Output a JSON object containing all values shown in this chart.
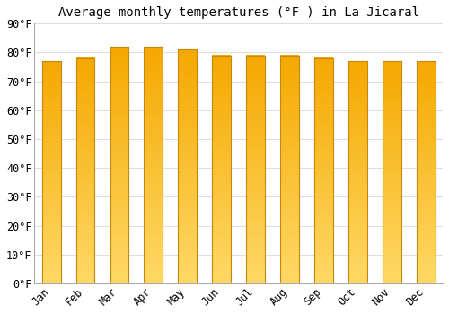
{
  "title": "Average monthly temperatures (°F ) in La Jicaral",
  "months": [
    "Jan",
    "Feb",
    "Mar",
    "Apr",
    "May",
    "Jun",
    "Jul",
    "Aug",
    "Sep",
    "Oct",
    "Nov",
    "Dec"
  ],
  "values": [
    77,
    78,
    82,
    82,
    81,
    79,
    79,
    79,
    78,
    77,
    77,
    77
  ],
  "bar_color_top": "#F5A800",
  "bar_color_bottom": "#FFD966",
  "bar_edge_color": "#C8860A",
  "ylim": [
    0,
    90
  ],
  "yticks": [
    0,
    10,
    20,
    30,
    40,
    50,
    60,
    70,
    80,
    90
  ],
  "background_color": "#ffffff",
  "grid_color": "#dddddd",
  "title_fontsize": 10,
  "tick_fontsize": 8.5,
  "bar_width": 0.55
}
